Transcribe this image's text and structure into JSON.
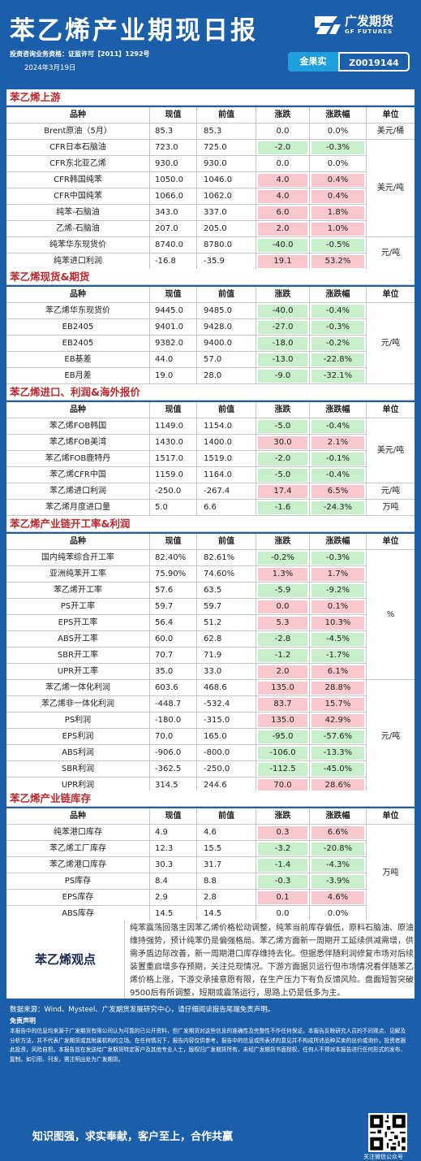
{
  "header": {
    "title": "苯乙烯产业期现日报",
    "logo_cn": "广发期货",
    "logo_en": "GF FUTURES",
    "license": "投资咨询业务资格：证监许可【2011】1292号",
    "date": "2024年3月19日",
    "analyst_name": "金果实",
    "analyst_id": "Z0019144"
  },
  "columns": [
    "品种",
    "现值",
    "前值",
    "涨跌",
    "涨跌幅",
    "单位"
  ],
  "sections": [
    {
      "title": "苯乙烯上游",
      "rows": [
        {
          "name": "Brent原油（5月）",
          "cur": "85.3",
          "prev": "85.3",
          "chg": "0.0",
          "pct": "0.0%",
          "dir": ""
        },
        {
          "name": "CFR日本石脑油",
          "cur": "723.0",
          "prev": "725.0",
          "chg": "-2.0",
          "pct": "-0.3%",
          "dir": "neg"
        },
        {
          "name": "CFR东北亚乙烯",
          "cur": "930.0",
          "prev": "930.0",
          "chg": "0.0",
          "pct": "0.0%",
          "dir": ""
        },
        {
          "name": "CFR韩国纯苯",
          "cur": "1050.0",
          "prev": "1046.0",
          "chg": "4.0",
          "pct": "0.4%",
          "dir": "pos"
        },
        {
          "name": "CFR中国纯苯",
          "cur": "1066.0",
          "prev": "1062.0",
          "chg": "4.0",
          "pct": "0.4%",
          "dir": "pos"
        },
        {
          "name": "纯苯-石脑油",
          "cur": "343.0",
          "prev": "337.0",
          "chg": "6.0",
          "pct": "1.8%",
          "dir": "pos"
        },
        {
          "name": "乙烯-石脑油",
          "cur": "207.0",
          "prev": "205.0",
          "chg": "2.0",
          "pct": "1.0%",
          "dir": "pos"
        },
        {
          "name": "纯苯华东现货价",
          "cur": "8740.0",
          "prev": "8780.0",
          "chg": "-40.0",
          "pct": "-0.5%",
          "dir": "neg"
        },
        {
          "name": "纯苯进口利润",
          "cur": "-16.8",
          "prev": "-35.9",
          "chg": "19.1",
          "pct": "53.2%",
          "dir": "pos"
        }
      ],
      "units": [
        {
          "label": "美元/桶",
          "from": 0,
          "span": 1
        },
        {
          "label": "美元/吨",
          "from": 1,
          "span": 6
        },
        {
          "label": "元/吨",
          "from": 7,
          "span": 2
        }
      ]
    },
    {
      "title": "苯乙烯现货&期货",
      "rows": [
        {
          "name": "苯乙烯华东现货价",
          "cur": "9445.0",
          "prev": "9485.0",
          "chg": "-40.0",
          "pct": "-0.4%",
          "dir": "neg"
        },
        {
          "name": "EB2405",
          "cur": "9401.0",
          "prev": "9428.0",
          "chg": "-27.0",
          "pct": "-0.3%",
          "dir": "neg"
        },
        {
          "name": "EB2405",
          "cur": "9382.0",
          "prev": "9400.0",
          "chg": "-18.0",
          "pct": "-0.2%",
          "dir": "neg"
        },
        {
          "name": "EB基差",
          "cur": "44.0",
          "prev": "57.0",
          "chg": "-13.0",
          "pct": "-22.8%",
          "dir": "neg"
        },
        {
          "name": "EB月差",
          "cur": "19.0",
          "prev": "28.0",
          "chg": "-9.0",
          "pct": "-32.1%",
          "dir": "neg"
        }
      ],
      "units": [
        {
          "label": "元/吨",
          "from": 0,
          "span": 5
        }
      ]
    },
    {
      "title": "苯乙烯进口、利润&海外报价",
      "rows": [
        {
          "name": "苯乙烯FOB韩国",
          "cur": "1149.0",
          "prev": "1154.0",
          "chg": "-5.0",
          "pct": "-0.4%",
          "dir": "neg"
        },
        {
          "name": "苯乙烯FOB美湾",
          "cur": "1430.0",
          "prev": "1400.0",
          "chg": "30.0",
          "pct": "2.1%",
          "dir": "pos"
        },
        {
          "name": "苯乙烯FOB鹿特丹",
          "cur": "1517.0",
          "prev": "1519.0",
          "chg": "-2.0",
          "pct": "-0.1%",
          "dir": "neg"
        },
        {
          "name": "苯乙烯CFR中国",
          "cur": "1159.0",
          "prev": "1164.0",
          "chg": "-5.0",
          "pct": "-0.4%",
          "dir": "neg"
        },
        {
          "name": "苯乙烯进口利润",
          "cur": "-250.0",
          "prev": "-267.4",
          "chg": "17.4",
          "pct": "6.5%",
          "dir": "pos"
        },
        {
          "name": "苯乙烯月度进口量",
          "cur": "5.0",
          "prev": "6.6",
          "chg": "-1.6",
          "pct": "-24.3%",
          "dir": "neg"
        }
      ],
      "units": [
        {
          "label": "美元/吨",
          "from": 0,
          "span": 4
        },
        {
          "label": "元/吨",
          "from": 4,
          "span": 1
        },
        {
          "label": "万吨",
          "from": 5,
          "span": 1
        }
      ]
    },
    {
      "title": "苯乙烯产业链开工率&利润",
      "rows": [
        {
          "name": "国内纯苯综合开工率",
          "cur": "82.40%",
          "prev": "82.61%",
          "chg": "-0.2%",
          "pct": "-0.3%",
          "dir": "neg"
        },
        {
          "name": "亚洲纯苯开工率",
          "cur": "75.90%",
          "prev": "74.60%",
          "chg": "1.3%",
          "pct": "1.7%",
          "dir": "pos"
        },
        {
          "name": "苯乙烯开工率",
          "cur": "57.6",
          "prev": "63.5",
          "chg": "-5.9",
          "pct": "-9.2%",
          "dir": "neg"
        },
        {
          "name": "PS开工率",
          "cur": "59.7",
          "prev": "59.7",
          "chg": "0.0",
          "pct": "0.1%",
          "dir": "pos"
        },
        {
          "name": "EPS开工率",
          "cur": "56.4",
          "prev": "51.2",
          "chg": "5.3",
          "pct": "10.3%",
          "dir": "pos"
        },
        {
          "name": "ABS开工率",
          "cur": "60.0",
          "prev": "62.8",
          "chg": "-2.8",
          "pct": "-4.5%",
          "dir": "neg"
        },
        {
          "name": "SBR开工率",
          "cur": "70.7",
          "prev": "71.9",
          "chg": "-1.2",
          "pct": "-1.7%",
          "dir": "neg"
        },
        {
          "name": "UPR开工率",
          "cur": "35.0",
          "prev": "33.0",
          "chg": "2.0",
          "pct": "6.1%",
          "dir": "pos"
        },
        {
          "name": "苯乙烯一体化利润",
          "cur": "603.6",
          "prev": "468.6",
          "chg": "135.0",
          "pct": "28.8%",
          "dir": "pos"
        },
        {
          "name": "苯乙烯非一体化利润",
          "cur": "-448.7",
          "prev": "-532.4",
          "chg": "83.7",
          "pct": "15.7%",
          "dir": "pos"
        },
        {
          "name": "PS利润",
          "cur": "-180.0",
          "prev": "-315.0",
          "chg": "135.0",
          "pct": "42.9%",
          "dir": "pos"
        },
        {
          "name": "EPS利润",
          "cur": "70.0",
          "prev": "165.0",
          "chg": "-95.0",
          "pct": "-57.6%",
          "dir": "neg"
        },
        {
          "name": "ABS利润",
          "cur": "-906.0",
          "prev": "-800.0",
          "chg": "-106.0",
          "pct": "-13.3%",
          "dir": "neg"
        },
        {
          "name": "SBR利润",
          "cur": "-362.5",
          "prev": "-250.0",
          "chg": "-112.5",
          "pct": "-45.0%",
          "dir": "neg"
        },
        {
          "name": "UPR利润",
          "cur": "314.5",
          "prev": "244.6",
          "chg": "70.0",
          "pct": "28.6%",
          "dir": "pos"
        }
      ],
      "units": [
        {
          "label": "%",
          "from": 0,
          "span": 8
        },
        {
          "label": "元/吨",
          "from": 8,
          "span": 7
        }
      ]
    },
    {
      "title": "苯乙烯产业链库存",
      "rows": [
        {
          "name": "纯苯港口库存",
          "cur": "4.9",
          "prev": "4.6",
          "chg": "0.3",
          "pct": "6.6%",
          "dir": "pos"
        },
        {
          "name": "苯乙烯工厂库存",
          "cur": "12.3",
          "prev": "15.5",
          "chg": "-3.2",
          "pct": "-20.8%",
          "dir": "neg"
        },
        {
          "name": "苯乙烯港口库存",
          "cur": "30.3",
          "prev": "31.7",
          "chg": "-1.4",
          "pct": "-4.3%",
          "dir": "neg"
        },
        {
          "name": "PS库存",
          "cur": "8.4",
          "prev": "8.8",
          "chg": "-0.3",
          "pct": "-3.9%",
          "dir": "neg"
        },
        {
          "name": "EPS库存",
          "cur": "2.9",
          "prev": "2.8",
          "chg": "0.1",
          "pct": "4.6%",
          "dir": "pos"
        },
        {
          "name": "ABS库存",
          "cur": "14.5",
          "prev": "14.5",
          "chg": "0.0",
          "pct": "0.0%",
          "dir": ""
        }
      ],
      "units": [
        {
          "label": "万吨",
          "from": 0,
          "span": 6
        }
      ]
    }
  ],
  "view": {
    "title": "苯乙烯观点",
    "text": "纯苯震荡回落主因苯乙烯价格松动调整，纯苯当前库存偏低，原料石脑油、原油维持强势，预计纯苯仍是偏强格局。苯乙烯方面新一周期开工延续供减需增，供需矛盾边际改善，新一周期港口库存维持去化。但据悉伴随利润修复市场对后续装置重启增多存预期，关注兑现情况。下游方面据贝运行但市场情况看伴随苯乙烯价格上涨，下游交承接意愿有限，在生产压力下有负反馈风险。盘面短暂突破9500后有所调整，短期或震荡运行，思路上仍是低多为主。"
  },
  "footer": {
    "source": "数据来源：Wind、Mysteel、广发期货发展研究中心，请仔细阅读报告尾端免责声明。",
    "disclaimer_title": "免责声明",
    "disclaimer": "本报告中的信息均来源于广发期货有限公司认为可靠的已公开资料，但广发期货对这些信息的准确性及完整性不作任何保证。本报告反映研究人员的不同观点、见解及分析方法，并不代表广发期货或其附属机构的立场。在任何情况下，报告内容仅供参考，报告中的信息或所表述的意见并不构成所述品种买卖的出价或询价，投资者据此投资，风险自担。本报告旨在发送给广发期货特定客户及其他专业人士，版权归广发期货所有，未经广发期货书面授权，任何人不得对本报告进行任何形式的发布、复制。如引用、刊发，需注明出处为广发期货。",
    "slogan": "知识图强，求实奉献，客户至上，合作共赢",
    "qr_label": "关注微信公众号"
  }
}
